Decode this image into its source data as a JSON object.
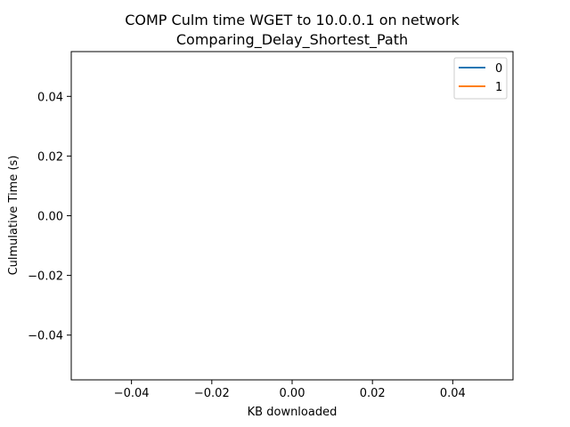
{
  "chart_data": {
    "type": "line",
    "title": "COMP Culm time WGET to 10.0.0.1 on network\nComparing_Delay_Shortest_Path",
    "title_lines": [
      "COMP Culm time WGET to 10.0.0.1 on network",
      "Comparing_Delay_Shortest_Path"
    ],
    "xlabel": "KB downloaded",
    "ylabel": "Culmulative Time (s)",
    "xlim": [
      -0.055,
      0.055
    ],
    "ylim": [
      -0.055,
      0.055
    ],
    "x_ticks": [
      {
        "value": -0.04,
        "label": "−0.04"
      },
      {
        "value": -0.02,
        "label": "−0.02"
      },
      {
        "value": 0.0,
        "label": "0.00"
      },
      {
        "value": 0.02,
        "label": "0.02"
      },
      {
        "value": 0.04,
        "label": "0.04"
      }
    ],
    "y_ticks": [
      {
        "value": -0.04,
        "label": "−0.04"
      },
      {
        "value": -0.02,
        "label": "−0.02"
      },
      {
        "value": 0.0,
        "label": "0.00"
      },
      {
        "value": 0.02,
        "label": "0.02"
      },
      {
        "value": 0.04,
        "label": "0.04"
      }
    ],
    "grid": false,
    "legend_position": "top-right",
    "series": [
      {
        "name": "0",
        "color": "#1f77b4",
        "x": [],
        "y": []
      },
      {
        "name": "1",
        "color": "#ff7f0e",
        "x": [],
        "y": []
      }
    ]
  }
}
